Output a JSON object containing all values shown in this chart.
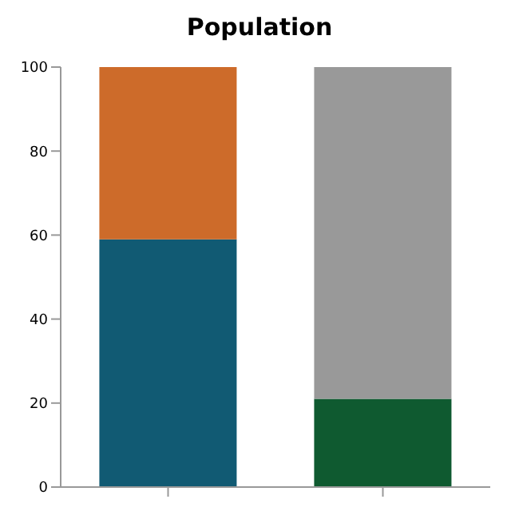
{
  "chart_data": {
    "type": "bar",
    "title": "Population",
    "categories": [
      null,
      null
    ],
    "stacked": true,
    "series": [
      {
        "colors": [
          "#115a73",
          "#0f5a30"
        ],
        "values": [
          59,
          21
        ]
      },
      {
        "colors": [
          "#cd6b2a",
          "#999999"
        ],
        "values": [
          41,
          79
        ]
      }
    ],
    "ylim": [
      0,
      100
    ],
    "yticks": [
      0,
      20,
      40,
      60,
      80,
      100
    ],
    "grid": false,
    "legend": false
  }
}
